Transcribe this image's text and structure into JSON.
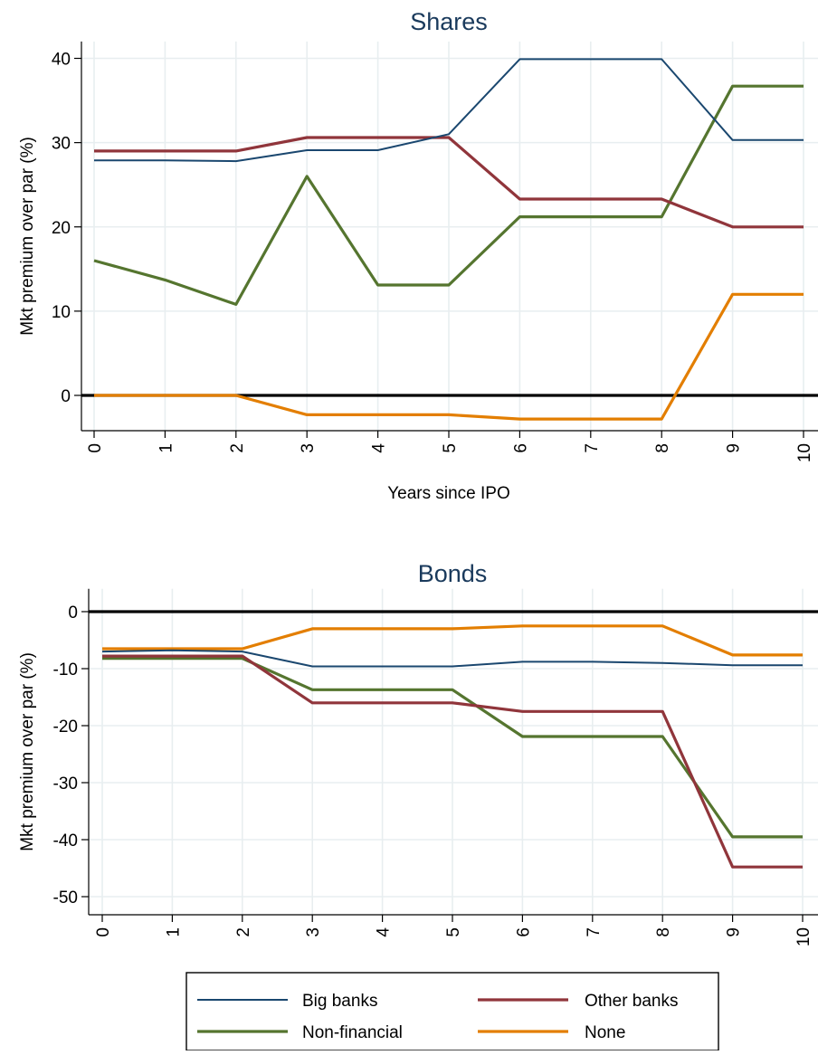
{
  "legend": {
    "placement": "bottom-center",
    "columns": 2
  },
  "chart_data": [
    {
      "type": "line",
      "title": "Shares",
      "xlabel": "Years since IPO",
      "ylabel": "Mkt premium over par (%)",
      "x": [
        0,
        1,
        2,
        3,
        4,
        5,
        6,
        7,
        8,
        9,
        10
      ],
      "xlim": [
        0,
        10
      ],
      "ylim": [
        -4.8,
        42
      ],
      "yticks": [
        0,
        10,
        20,
        30,
        40
      ],
      "grid": true,
      "reference_line": {
        "y": 0,
        "color": "#000000"
      },
      "series": [
        {
          "name": "Big banks",
          "color": "#1a476f",
          "values": [
            27.9,
            27.9,
            27.8,
            29.1,
            29.1,
            31.0,
            39.9,
            39.9,
            39.9,
            30.3,
            30.3
          ]
        },
        {
          "name": "Other banks",
          "color": "#90353b",
          "values": [
            29.0,
            29.0,
            29.0,
            30.6,
            30.6,
            30.6,
            23.3,
            23.3,
            23.3,
            20.0,
            20.0
          ]
        },
        {
          "name": "Non-financial",
          "color": "#55752f",
          "values": [
            16.0,
            13.7,
            10.8,
            26.0,
            13.1,
            13.1,
            21.2,
            21.2,
            21.2,
            36.7,
            36.7
          ]
        },
        {
          "name": "None",
          "color": "#e37e00",
          "values": [
            0.0,
            0.0,
            0.0,
            -2.3,
            -2.3,
            -2.3,
            -2.8,
            -2.8,
            -2.8,
            12.0,
            12.0
          ]
        }
      ]
    },
    {
      "type": "line",
      "title": "Bonds",
      "xlabel": "",
      "ylabel": "Mkt premium over par (%)",
      "x": [
        0,
        1,
        2,
        3,
        4,
        5,
        6,
        7,
        8,
        9,
        10
      ],
      "xlim": [
        0,
        10
      ],
      "ylim": [
        -52.5,
        4
      ],
      "yticks": [
        0,
        -10,
        -20,
        -30,
        -40,
        -50
      ],
      "grid": true,
      "reference_line": {
        "y": 0,
        "color": "#000000"
      },
      "series": [
        {
          "name": "Big banks",
          "color": "#1a476f",
          "values": [
            -7.0,
            -6.8,
            -7.0,
            -9.6,
            -9.6,
            -9.6,
            -8.8,
            -8.8,
            -9.0,
            -9.4,
            -9.4
          ]
        },
        {
          "name": "Other banks",
          "color": "#90353b",
          "values": [
            -7.8,
            -7.8,
            -7.8,
            -16.0,
            -16.0,
            -16.0,
            -17.5,
            -17.5,
            -17.5,
            -44.8,
            -44.8
          ]
        },
        {
          "name": "Non-financial",
          "color": "#55752f",
          "values": [
            -8.2,
            -8.2,
            -8.2,
            -13.7,
            -13.7,
            -13.7,
            -21.9,
            -21.9,
            -21.9,
            -39.5,
            -39.5
          ]
        },
        {
          "name": "None",
          "color": "#e37e00",
          "values": [
            -6.5,
            -6.5,
            -6.5,
            -3.0,
            -3.0,
            -3.0,
            -2.5,
            -2.5,
            -2.5,
            -7.6,
            -7.6
          ]
        }
      ]
    }
  ]
}
